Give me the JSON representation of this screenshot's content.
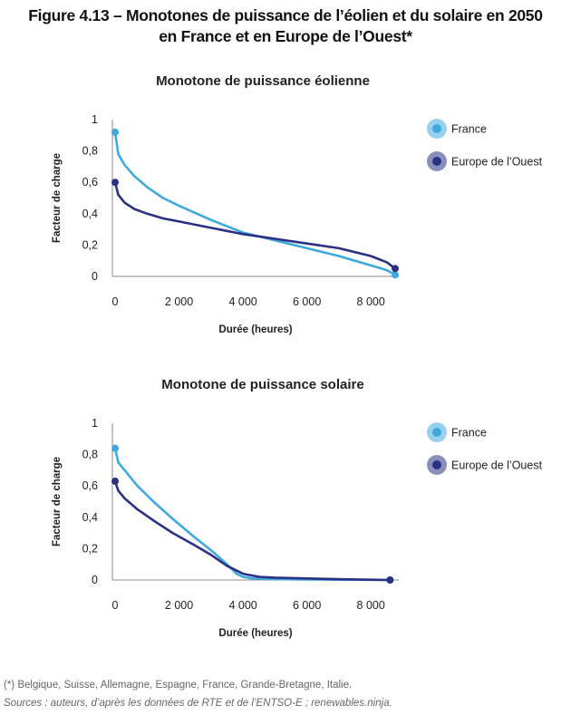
{
  "figure": {
    "title_line1": "Figure 4.13 – Monotones de puissance de l’éolien et du solaire en 2050",
    "title_line2": "en France et en Europe de l’Ouest*",
    "footnote": "(*) Belgique, Suisse, Allemagne, Espagne, France, Grande-Bretagne, Italie.",
    "sources": "Sources : auteurs, d’après les données de RTE et de l’ENTSO-E ; renewables.ninja."
  },
  "colors": {
    "france": "#3fa9dd",
    "europe": "#2a3184",
    "axis": "#888888"
  },
  "chart_data": [
    {
      "type": "line",
      "title": "Monotone de puissance éolienne",
      "xlabel": "Durée (heures)",
      "ylabel": "Facteur de charge",
      "xlim": [
        0,
        8760
      ],
      "ylim": [
        0,
        1
      ],
      "x_ticks": [
        0,
        2000,
        4000,
        6000,
        8000
      ],
      "x_tick_labels": [
        "0",
        "2 000",
        "4 000",
        "6 000",
        "8 000"
      ],
      "y_ticks": [
        0,
        0.2,
        0.4,
        0.6,
        0.8,
        1
      ],
      "y_tick_labels": [
        "0",
        "0,2",
        "0,4",
        "0,6",
        "0,8",
        "1"
      ],
      "legend": [
        "France",
        "Europe de l’Ouest"
      ],
      "series": [
        {
          "name": "France",
          "color": "#3fa9dd",
          "x": [
            0,
            100,
            300,
            600,
            1000,
            1500,
            2000,
            3000,
            4000,
            5000,
            6000,
            7000,
            8000,
            8500,
            8760
          ],
          "y": [
            0.92,
            0.78,
            0.71,
            0.64,
            0.57,
            0.5,
            0.45,
            0.36,
            0.28,
            0.23,
            0.18,
            0.13,
            0.07,
            0.04,
            0.01
          ]
        },
        {
          "name": "Europe de l’Ouest",
          "color": "#2a3184",
          "x": [
            0,
            100,
            300,
            600,
            1000,
            1500,
            2000,
            3000,
            4000,
            5000,
            6000,
            7000,
            8000,
            8500,
            8760
          ],
          "y": [
            0.6,
            0.52,
            0.47,
            0.43,
            0.4,
            0.37,
            0.35,
            0.31,
            0.27,
            0.24,
            0.21,
            0.18,
            0.13,
            0.09,
            0.05
          ]
        }
      ]
    },
    {
      "type": "line",
      "title": "Monotone de puissance solaire",
      "xlabel": "Durée (heures)",
      "ylabel": "Facteur de charge",
      "xlim": [
        0,
        8760
      ],
      "ylim": [
        0,
        1
      ],
      "x_ticks": [
        0,
        2000,
        4000,
        6000,
        8000
      ],
      "x_tick_labels": [
        "0",
        "2 000",
        "4 000",
        "6 000",
        "8 000"
      ],
      "y_ticks": [
        0,
        0.2,
        0.4,
        0.6,
        0.8,
        1
      ],
      "y_tick_labels": [
        "0",
        "0,2",
        "0,4",
        "0,6",
        "0,8",
        "1"
      ],
      "legend": [
        "France",
        "Europe de l’Ouest"
      ],
      "series": [
        {
          "name": "France",
          "color": "#3fa9dd",
          "x": [
            0,
            100,
            300,
            700,
            1200,
            1800,
            2500,
            3000,
            3500,
            3800,
            4000,
            4300,
            5000,
            6000,
            7000,
            8000,
            8600
          ],
          "y": [
            0.84,
            0.75,
            0.7,
            0.6,
            0.5,
            0.39,
            0.27,
            0.19,
            0.1,
            0.04,
            0.02,
            0.01,
            0.005,
            0.003,
            0.002,
            0.001,
            0.0
          ]
        },
        {
          "name": "Europe de l’Ouest",
          "color": "#2a3184",
          "x": [
            0,
            100,
            300,
            700,
            1200,
            1800,
            2500,
            3000,
            3500,
            4000,
            4500,
            5000,
            6000,
            7000,
            8000,
            8600
          ],
          "y": [
            0.63,
            0.57,
            0.52,
            0.45,
            0.38,
            0.3,
            0.22,
            0.16,
            0.09,
            0.04,
            0.02,
            0.015,
            0.01,
            0.005,
            0.002,
            0.0
          ]
        }
      ]
    }
  ]
}
